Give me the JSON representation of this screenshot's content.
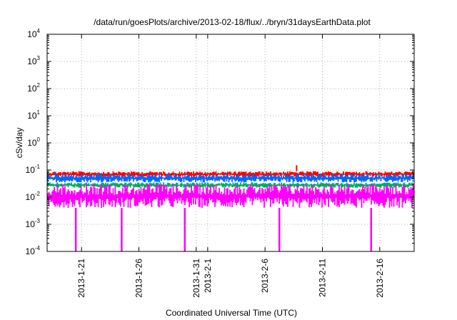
{
  "chart_data": {
    "type": "area",
    "title": "/data/run/goesPlots/archive/2013-02-18/flux/../bryn/31daysEarthData.plot",
    "xlabel": "Coordinated Universal Time (UTC)",
    "ylabel": "cSv/day",
    "y_scale": "log",
    "ylim": [
      0.0001,
      10000
    ],
    "xlim": [
      "2013-01-18",
      "2013-02-19"
    ],
    "grid": true,
    "y_ticks": [
      {
        "base": "10",
        "exp": "-4",
        "value": 0.0001
      },
      {
        "base": "10",
        "exp": "-3",
        "value": 0.001
      },
      {
        "base": "10",
        "exp": "-2",
        "value": 0.01
      },
      {
        "base": "10",
        "exp": "-1",
        "value": 0.1
      },
      {
        "base": "10",
        "exp": "0",
        "value": 1
      },
      {
        "base": "10",
        "exp": "1",
        "value": 10
      },
      {
        "base": "10",
        "exp": "2",
        "value": 100
      },
      {
        "base": "10",
        "exp": "3",
        "value": 1000
      },
      {
        "base": "10",
        "exp": "4",
        "value": 10000
      }
    ],
    "x_ticks": [
      {
        "label": "2013-1-21",
        "date": "2013-01-21"
      },
      {
        "label": "2013-1-26",
        "date": "2013-01-26"
      },
      {
        "label": "2013-1-31",
        "date": "2013-01-31"
      },
      {
        "label": "2013-2-1",
        "date": "2013-02-01"
      },
      {
        "label": "2013-2-6",
        "date": "2013-02-06"
      },
      {
        "label": "2013-2-11",
        "date": "2013-02-11"
      },
      {
        "label": "2013-2-16",
        "date": "2013-02-16"
      }
    ],
    "series": [
      {
        "color": "#ff0000",
        "typical_min": 0.055,
        "typical_max": 0.09
      },
      {
        "color": "#0066ff",
        "typical_min": 0.035,
        "typical_max": 0.07
      },
      {
        "color": "#00aa66",
        "typical_min": 0.022,
        "typical_max": 0.035
      },
      {
        "color": "#ff00ff",
        "typical_min": 0.004,
        "typical_max": 0.03
      }
    ],
    "dropouts": [
      {
        "date": "2013-01-20T12:00",
        "value": 0.0001
      },
      {
        "date": "2013-01-24T12:00",
        "value": 0.0001
      },
      {
        "date": "2013-01-30T00:00",
        "value": 0.0001
      },
      {
        "date": "2013-02-07T06:00",
        "value": 0.0001
      },
      {
        "date": "2013-02-15T06:00",
        "value": 0.0001
      }
    ],
    "spikes": [
      {
        "date": "2013-02-08T18:00",
        "value": 0.15
      }
    ]
  }
}
